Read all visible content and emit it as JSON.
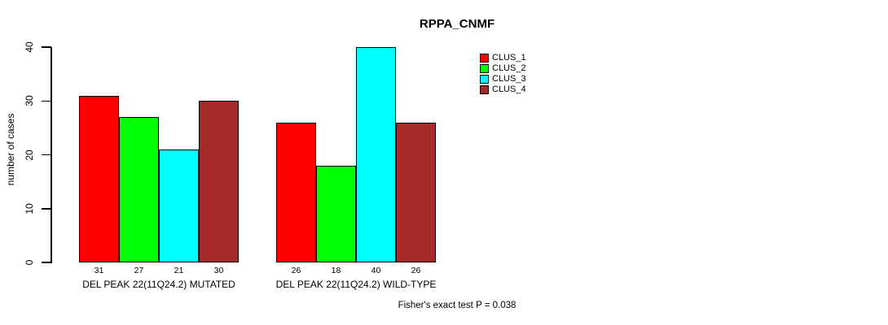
{
  "chart_data": {
    "type": "bar",
    "title": "RPPA_CNMF",
    "ylabel": "number of cases",
    "xlabel": "",
    "ylim": [
      0,
      40
    ],
    "yticks": [
      0,
      10,
      20,
      30,
      40
    ],
    "categories": [
      "DEL PEAK 22(11Q24.2) MUTATED",
      "DEL PEAK 22(11Q24.2) WILD-TYPE"
    ],
    "series": [
      {
        "name": "CLUS_1",
        "color": "#ff0000",
        "values": [
          31,
          26
        ]
      },
      {
        "name": "CLUS_2",
        "color": "#00ff00",
        "values": [
          27,
          18
        ]
      },
      {
        "name": "CLUS_3",
        "color": "#00ffff",
        "values": [
          21,
          40
        ]
      },
      {
        "name": "CLUS_4",
        "color": "#a52a2a",
        "values": [
          30,
          26
        ]
      }
    ],
    "bar_value_labels": true,
    "legend_position": "top-right",
    "grid": false,
    "annotation": "Fisher's exact test P = 0.038"
  }
}
